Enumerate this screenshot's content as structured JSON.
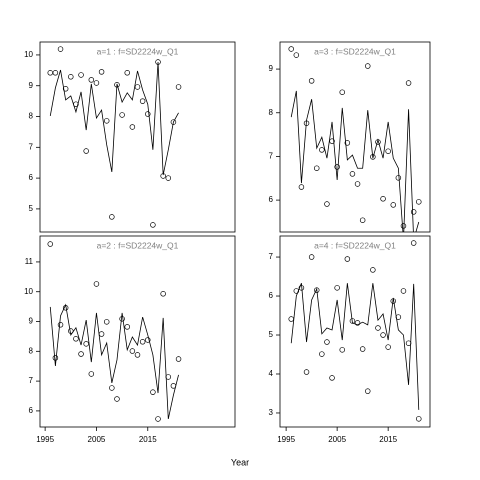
{
  "x_label": "Year",
  "chart_data": [
    {
      "type": "line",
      "title": "a=1  :  f=SD2224w_Q1",
      "x": [
        1996,
        1997,
        1998,
        1999,
        2000,
        2001,
        2002,
        2003,
        2004,
        2005,
        2006,
        2007,
        2008,
        2009,
        2010,
        2011,
        2012,
        2013,
        2014,
        2015,
        2016,
        2017,
        2018,
        2019,
        2020,
        2021
      ],
      "series": [
        {
          "style": "points",
          "color": "#000000",
          "values": [
            9.42,
            9.42,
            10.19,
            8.9,
            9.29,
            8.4,
            9.35,
            6.88,
            9.19,
            9.09,
            9.45,
            7.86,
            4.74,
            9.03,
            8.05,
            9.42,
            7.66,
            8.96,
            8.5,
            8.08,
            4.48,
            9.77,
            6.07,
            6.0,
            7.82,
            8.96
          ]
        },
        {
          "style": "line",
          "color": "#000000",
          "values": [
            8.02,
            8.93,
            9.51,
            8.54,
            8.67,
            8.15,
            8.8,
            7.56,
            9.06,
            7.95,
            8.21,
            7.08,
            6.2,
            9.06,
            8.47,
            8.77,
            8.54,
            9.48,
            8.86,
            8.4,
            6.92,
            9.77,
            6.1,
            6.92,
            7.82,
            8.12
          ]
        }
      ],
      "xlim": [
        1994,
        2032
      ],
      "ylim": [
        4.25,
        10.42
      ],
      "yticks": [
        5,
        6,
        7,
        8,
        9,
        10
      ]
    },
    {
      "type": "line",
      "title": "a=3  :  f=SD2224w_Q1",
      "x": [
        1996,
        1997,
        1998,
        1999,
        2000,
        2001,
        2002,
        2003,
        2004,
        2005,
        2006,
        2007,
        2008,
        2009,
        2010,
        2011,
        2012,
        2013,
        2014,
        2015,
        2016,
        2017,
        2018,
        2019,
        2020,
        2021
      ],
      "series": [
        {
          "style": "points",
          "color": "#000000",
          "values": [
            9.46,
            9.32,
            6.3,
            7.76,
            8.73,
            6.73,
            7.15,
            5.91,
            7.35,
            6.76,
            8.47,
            7.31,
            6.6,
            6.37,
            5.54,
            9.07,
            6.99,
            7.33,
            6.03,
            7.12,
            5.89,
            6.51,
            5.41,
            8.68,
            5.73,
            5.96
          ]
        },
        {
          "style": "line",
          "color": "#000000",
          "values": [
            7.9,
            8.5,
            6.39,
            7.83,
            8.31,
            7.19,
            7.44,
            6.96,
            7.79,
            6.46,
            8.11,
            6.92,
            7.03,
            6.73,
            6.73,
            8.06,
            6.96,
            7.38,
            6.96,
            7.79,
            6.96,
            6.73,
            5.09,
            8.08,
            5.09,
            5.5
          ]
        }
      ],
      "xlim": [
        1993.8,
        2023.2
      ],
      "ylim": [
        5.27,
        9.62
      ],
      "yticks": [
        6,
        7,
        8,
        9
      ]
    },
    {
      "type": "line",
      "title": "a=2  :  f=SD2224w_Q1",
      "x": [
        1996,
        1997,
        1998,
        1999,
        2000,
        2001,
        2002,
        2003,
        2004,
        2005,
        2006,
        2007,
        2008,
        2009,
        2010,
        2011,
        2012,
        2013,
        2014,
        2015,
        2016,
        2017,
        2018,
        2019,
        2020,
        2021
      ],
      "series": [
        {
          "style": "points",
          "color": "#000000",
          "values": [
            11.6,
            7.78,
            8.89,
            9.46,
            8.68,
            8.42,
            7.91,
            8.25,
            7.24,
            10.26,
            8.58,
            8.99,
            6.77,
            6.4,
            9.09,
            8.82,
            8.01,
            7.88,
            8.32,
            8.38,
            6.63,
            5.73,
            9.93,
            7.14,
            6.84,
            7.74
          ]
        },
        {
          "style": "line",
          "color": "#000000",
          "values": [
            9.49,
            7.51,
            9.19,
            9.56,
            8.55,
            8.79,
            8.21,
            9.05,
            7.64,
            9.29,
            7.88,
            8.28,
            6.94,
            7.71,
            9.29,
            8.05,
            8.48,
            8.21,
            9.15,
            8.55,
            7.88,
            6.6,
            9.12,
            5.73,
            6.53,
            7.21
          ]
        }
      ],
      "xlim": [
        1994,
        2032
      ],
      "ylim": [
        5.46,
        11.87
      ],
      "yticks": [
        6,
        7,
        8,
        9,
        10,
        11
      ],
      "xticks": [
        1995,
        2005,
        2015
      ]
    },
    {
      "type": "line",
      "title": "a=4  :  f=SD2224w_Q1",
      "x": [
        1996,
        1997,
        1998,
        1999,
        2000,
        2001,
        2002,
        2003,
        2004,
        2005,
        2006,
        2007,
        2008,
        2009,
        2010,
        2011,
        2012,
        2013,
        2014,
        2015,
        2016,
        2017,
        2018,
        2019,
        2020,
        2021
      ],
      "series": [
        {
          "style": "points",
          "color": "#000000",
          "values": [
            5.41,
            6.13,
            6.21,
            4.05,
            7.0,
            6.15,
            4.51,
            4.82,
            3.9,
            6.21,
            4.62,
            6.95,
            5.36,
            5.31,
            4.64,
            3.56,
            6.67,
            5.18,
            5.0,
            4.69,
            5.87,
            5.46,
            6.13,
            4.79,
            7.36,
            2.85
          ]
        },
        {
          "style": "line",
          "color": "#000000",
          "values": [
            4.79,
            6.0,
            6.33,
            4.82,
            5.9,
            6.18,
            5.03,
            5.18,
            5.13,
            5.9,
            4.87,
            6.33,
            5.31,
            5.26,
            5.33,
            5.26,
            6.33,
            5.38,
            5.54,
            4.87,
            5.95,
            5.13,
            5.0,
            3.72,
            6.31,
            3.08
          ]
        }
      ],
      "xlim": [
        1993.8,
        2023.2
      ],
      "ylim": [
        2.64,
        7.54
      ],
      "yticks": [
        3,
        4,
        5,
        6,
        7
      ],
      "xticks": [
        1995,
        2005,
        2015
      ]
    }
  ]
}
